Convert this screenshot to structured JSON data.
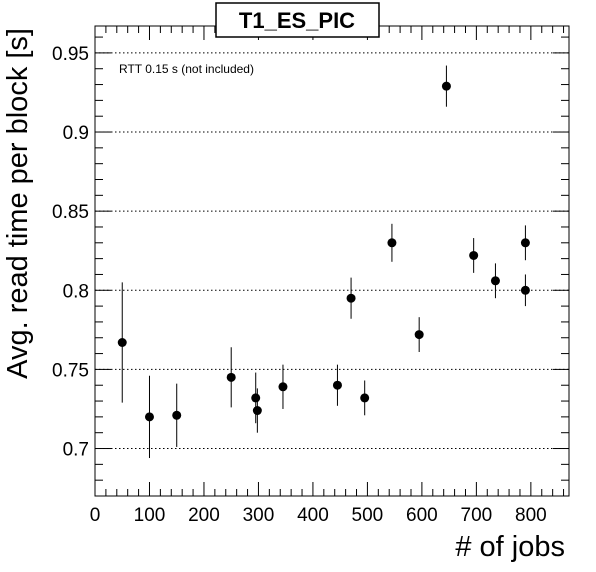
{
  "chart_data": {
    "type": "scatter",
    "title": "T1_ES_PIC",
    "xlabel": "# of jobs",
    "ylabel": "Avg. read time per block [s]",
    "annotation": "RTT 0.15 s (not included)",
    "xlim": [
      0,
      870
    ],
    "ylim": [
      0.67,
      0.967
    ],
    "x_ticks": [
      0,
      100,
      200,
      300,
      400,
      500,
      600,
      700,
      800
    ],
    "y_ticks": [
      0.7,
      0.75,
      0.8,
      0.85,
      0.9,
      0.95
    ],
    "x_tick_labels": [
      "0",
      "100",
      "200",
      "300",
      "400",
      "500",
      "600",
      "700",
      "800"
    ],
    "y_tick_labels": [
      "0.7",
      "0.75",
      "0.8",
      "0.85",
      "0.9",
      "0.95"
    ],
    "grid": "horizontal",
    "points": [
      {
        "x": 50,
        "y": 0.767,
        "err": 0.038
      },
      {
        "x": 100,
        "y": 0.72,
        "err": 0.026
      },
      {
        "x": 150,
        "y": 0.721,
        "err": 0.02
      },
      {
        "x": 250,
        "y": 0.745,
        "err": 0.019
      },
      {
        "x": 295,
        "y": 0.732,
        "err": 0.016
      },
      {
        "x": 298,
        "y": 0.724,
        "err": 0.014
      },
      {
        "x": 345,
        "y": 0.739,
        "err": 0.014
      },
      {
        "x": 445,
        "y": 0.74,
        "err": 0.013
      },
      {
        "x": 470,
        "y": 0.795,
        "err": 0.013
      },
      {
        "x": 495,
        "y": 0.732,
        "err": 0.011
      },
      {
        "x": 545,
        "y": 0.83,
        "err": 0.012
      },
      {
        "x": 595,
        "y": 0.772,
        "err": 0.011
      },
      {
        "x": 645,
        "y": 0.929,
        "err": 0.013
      },
      {
        "x": 695,
        "y": 0.822,
        "err": 0.011
      },
      {
        "x": 735,
        "y": 0.806,
        "err": 0.011
      },
      {
        "x": 790,
        "y": 0.83,
        "err": 0.011
      },
      {
        "x": 790,
        "y": 0.8,
        "err": 0.01
      }
    ]
  }
}
